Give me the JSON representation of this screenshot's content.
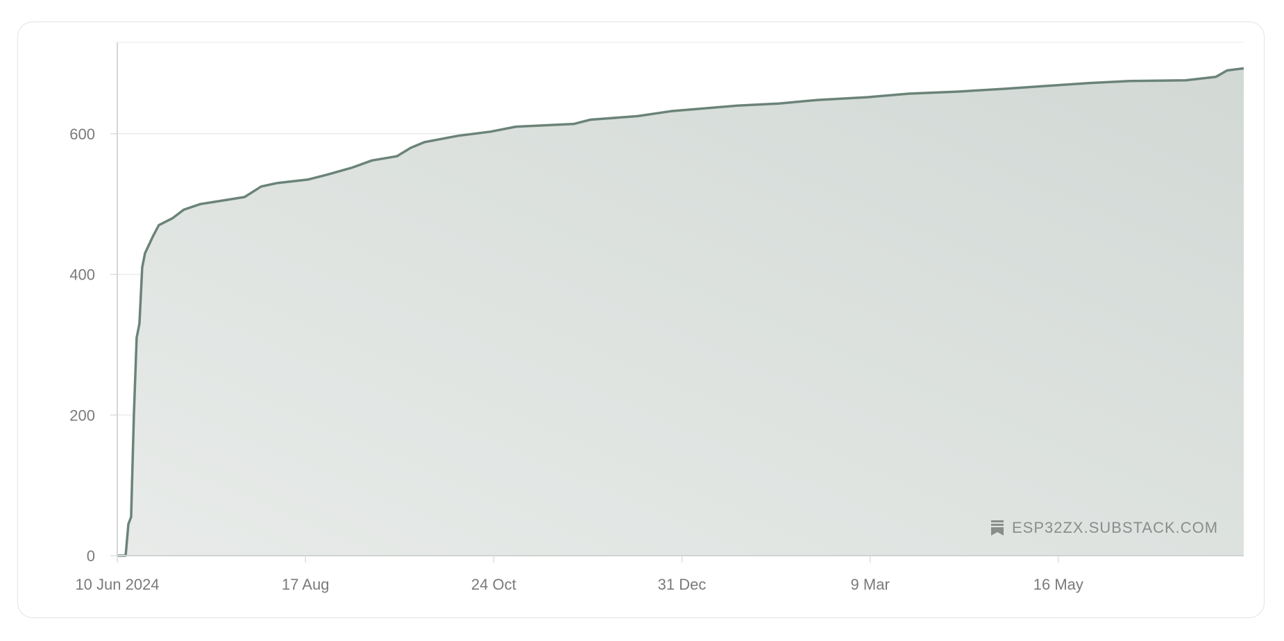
{
  "chart_data": {
    "type": "area",
    "title": "",
    "xlabel": "",
    "ylabel": "",
    "xlim": [
      "2024-06-10",
      "2025-07-22"
    ],
    "ylim": [
      0,
      730
    ],
    "grid": true,
    "x_ticks": [
      "10 Jun 2024",
      "17 Aug",
      "24 Oct",
      "31 Dec",
      "9 Mar",
      "16 May"
    ],
    "x_tick_dates": [
      "2024-06-10",
      "2024-08-17",
      "2024-10-24",
      "2024-12-31",
      "2025-03-09",
      "2025-05-16"
    ],
    "y_ticks": [
      0,
      200,
      400,
      600
    ],
    "line_color": "#6b8378",
    "fill_color": "#d3dad6",
    "series": [
      {
        "x": [
          "2024-06-10",
          "2024-06-13",
          "2024-06-14",
          "2024-06-15",
          "2024-06-16",
          "2024-06-17",
          "2024-06-18",
          "2024-06-19",
          "2024-06-20",
          "2024-06-23",
          "2024-06-25",
          "2024-06-30",
          "2024-07-04",
          "2024-07-10",
          "2024-07-18",
          "2024-07-26",
          "2024-08-01",
          "2024-08-07",
          "2024-08-18",
          "2024-08-25",
          "2024-09-03",
          "2024-09-10",
          "2024-09-19",
          "2024-09-24",
          "2024-09-29",
          "2024-10-11",
          "2024-10-23",
          "2024-11-01",
          "2024-11-22",
          "2024-11-28",
          "2024-12-15",
          "2024-12-27",
          "2025-01-08",
          "2025-01-20",
          "2025-02-04",
          "2025-02-18",
          "2025-03-08",
          "2025-03-23",
          "2025-04-10",
          "2025-04-27",
          "2025-05-12",
          "2025-05-27",
          "2025-06-11",
          "2025-07-01",
          "2025-07-12",
          "2025-07-16",
          "2025-07-22"
        ],
        "y": [
          0,
          0,
          45,
          55,
          200,
          310,
          330,
          410,
          430,
          455,
          470,
          480,
          492,
          500,
          505,
          510,
          525,
          530,
          535,
          542,
          552,
          562,
          568,
          580,
          588,
          597,
          603,
          610,
          614,
          620,
          625,
          632,
          636,
          640,
          643,
          648,
          652,
          657,
          660,
          664,
          668,
          672,
          675,
          676,
          681,
          690,
          693
        ]
      }
    ]
  },
  "watermark": {
    "text": "ESP32ZX.SUBSTACK.COM",
    "icon": "substack-bookmark-icon"
  }
}
